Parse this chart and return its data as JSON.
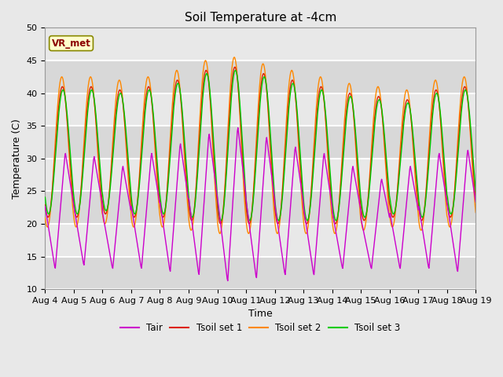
{
  "title": "Soil Temperature at -4cm",
  "xlabel": "Time",
  "ylabel": "Temperature (C)",
  "ylim": [
    10,
    50
  ],
  "x_ticks_labels": [
    "Aug 4",
    "Aug 5",
    "Aug 6",
    "Aug 7",
    "Aug 8",
    "Aug 9",
    "Aug 10",
    "Aug 11",
    "Aug 12",
    "Aug 13",
    "Aug 14",
    "Aug 15",
    "Aug 16",
    "Aug 17",
    "Aug 18",
    "Aug 19"
  ],
  "legend_labels": [
    "Tair",
    "Tsoil set 1",
    "Tsoil set 2",
    "Tsoil set 3"
  ],
  "line_colors": [
    "#cc00cc",
    "#dd2200",
    "#ff8800",
    "#00cc00"
  ],
  "annotation_text": "VR_met",
  "annotation_bg": "#ffffcc",
  "annotation_border": "#888800",
  "fig_bg": "#e8e8e8",
  "plot_bg": "#e0e0e0",
  "title_fontsize": 11,
  "axis_fontsize": 9,
  "tick_fontsize": 8,
  "n_days": 15,
  "pts_per_day": 48
}
